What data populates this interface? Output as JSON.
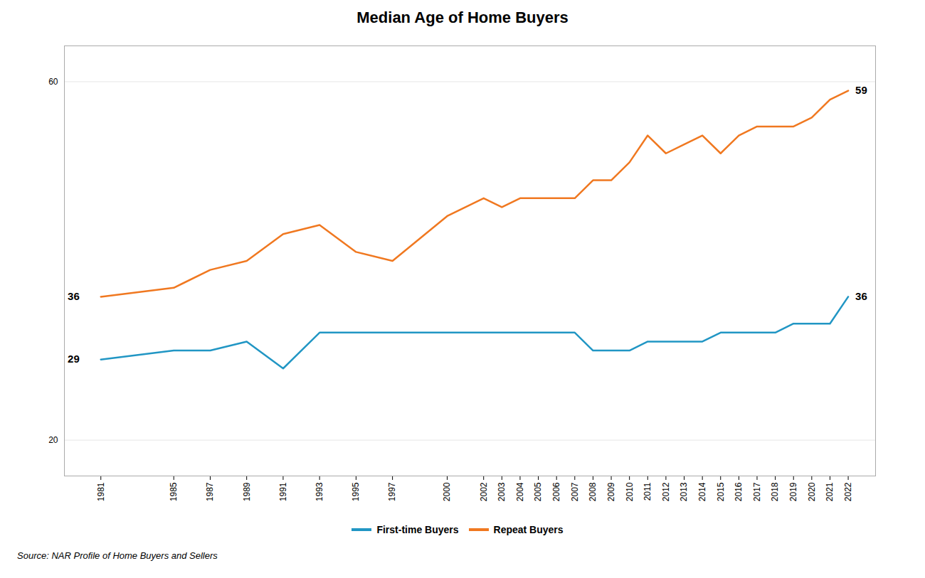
{
  "chart_data": {
    "type": "line",
    "title": "Median Age of Home Buyers",
    "x": [
      1981,
      1985,
      1987,
      1989,
      1991,
      1993,
      1995,
      1997,
      2000,
      2002,
      2003,
      2004,
      2005,
      2006,
      2007,
      2008,
      2009,
      2010,
      2011,
      2012,
      2013,
      2014,
      2015,
      2016,
      2017,
      2018,
      2019,
      2020,
      2021,
      2022
    ],
    "series": [
      {
        "name": "First-time Buyers",
        "color": "#2196c4",
        "values": [
          29,
          30,
          30,
          31,
          28,
          32,
          32,
          32,
          32,
          32,
          32,
          32,
          32,
          32,
          32,
          30,
          30,
          30,
          31,
          31,
          31,
          31,
          32,
          32,
          32,
          32,
          33,
          33,
          33,
          36
        ]
      },
      {
        "name": "Repeat Buyers",
        "color": "#f07820",
        "values": [
          36,
          37,
          39,
          40,
          43,
          44,
          41,
          40,
          45,
          47,
          46,
          47,
          47,
          47,
          47,
          49,
          49,
          51,
          54,
          52,
          53,
          54,
          52,
          54,
          55,
          55,
          55,
          56,
          58,
          59
        ]
      }
    ],
    "xlim": [
      1979,
      2023.5
    ],
    "xticks": [
      1981,
      1985,
      1987,
      1989,
      1991,
      1993,
      1995,
      1997,
      2000,
      2002,
      2003,
      2004,
      2005,
      2006,
      2007,
      2008,
      2009,
      2010,
      2011,
      2012,
      2013,
      2014,
      2015,
      2016,
      2017,
      2018,
      2019,
      2020,
      2021,
      2022
    ],
    "ylim": [
      16,
      64
    ],
    "yticks": [
      20,
      60
    ],
    "grid": "y",
    "legend": "bottom",
    "annotations": [
      {
        "text": "29",
        "x": 1981,
        "y": 29
      },
      {
        "text": "36",
        "x": 1981,
        "y": 36
      },
      {
        "text": "36",
        "x": 2022,
        "y": 36
      },
      {
        "text": "59",
        "x": 2022,
        "y": 59
      }
    ],
    "source": "Source: NAR Profile of Home Buyers and Sellers"
  }
}
